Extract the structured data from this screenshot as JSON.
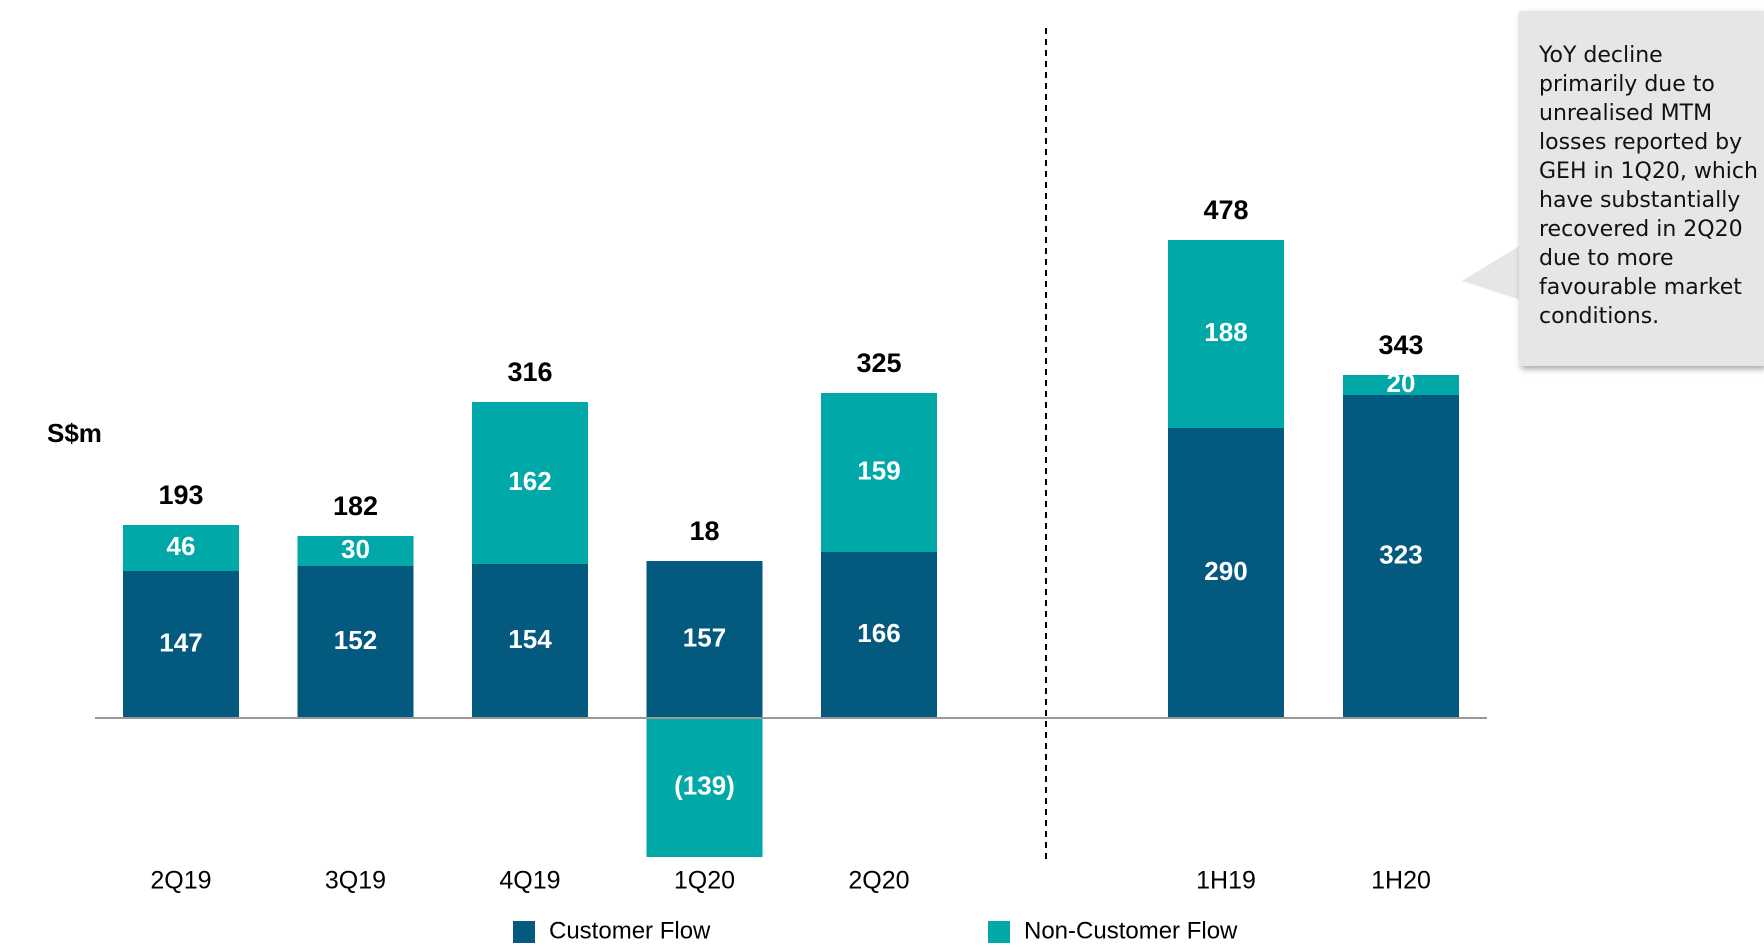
{
  "chart_data": {
    "type": "bar",
    "stacked": true,
    "ylabel": "S$m",
    "categories": [
      "2Q19",
      "3Q19",
      "4Q19",
      "1Q20",
      "2Q20",
      "1H19",
      "1H20"
    ],
    "series": [
      {
        "name": "Customer Flow",
        "color": "#035a7e",
        "values": [
          147,
          152,
          154,
          157,
          166,
          290,
          323
        ]
      },
      {
        "name": "Non-Customer Flow",
        "color": "#00a9a8",
        "values": [
          46,
          30,
          162,
          -139,
          159,
          188,
          20
        ],
        "value_labels": [
          "46",
          "30",
          "162",
          "(139)",
          "159",
          "188",
          "20"
        ]
      }
    ],
    "totals": [
      193,
      182,
      316,
      18,
      325,
      478,
      343
    ],
    "ylim": [
      -180,
      550
    ],
    "annotation": "YoY decline primarily due to unrealised MTM losses reported by GEH in 1Q20, which have substantially recovered in 2Q20 due to more favourable market conditions."
  }
}
